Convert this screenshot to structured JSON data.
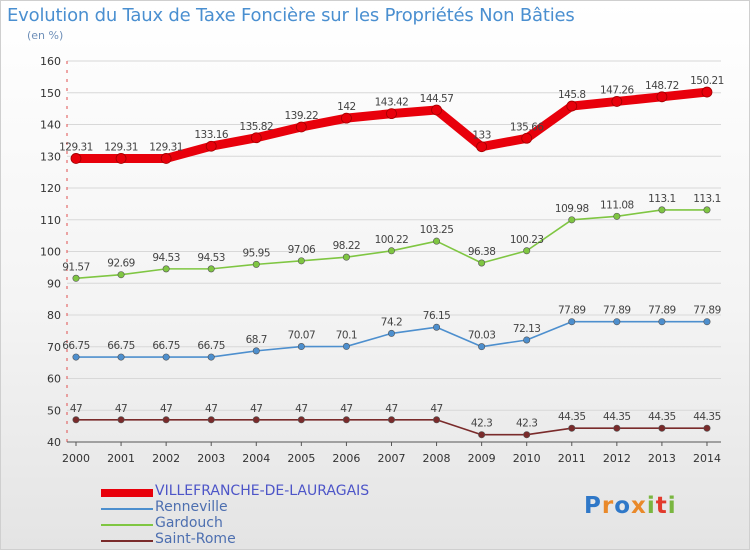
{
  "chart_data": {
    "type": "line",
    "title": "Evolution du Taux de Taxe Foncière sur les Propriétés Non Bâties",
    "unit_label": "(en %)",
    "x": [
      "2000",
      "2001",
      "2002",
      "2003",
      "2004",
      "2005",
      "2006",
      "2007",
      "2008",
      "2009",
      "2010",
      "2011",
      "2012",
      "2013",
      "2014"
    ],
    "y_ticks": [
      "40",
      "50",
      "60",
      "70",
      "80",
      "90",
      "100",
      "110",
      "120",
      "130",
      "140",
      "150",
      "160"
    ],
    "ylim": [
      40,
      160
    ],
    "grid": true,
    "legend_position": "bottom-left",
    "series": [
      {
        "name": "VILLEFRANCHE-DE-LAURAGAIS",
        "color": "#e8000b",
        "values": [
          129.31,
          129.31,
          129.31,
          133.16,
          135.82,
          139.22,
          142,
          143.42,
          144.57,
          133,
          135.66,
          145.8,
          147.26,
          148.72,
          150.21
        ],
        "labels": [
          "129.31",
          "129.31",
          "129.31",
          "133.16",
          "135.82",
          "139.22",
          "142",
          "143.42",
          "144.57",
          "133",
          "135.66",
          "145.8",
          "147.26",
          "148.72",
          "150.21"
        ]
      },
      {
        "name": "Renneville",
        "color": "#4d8fce",
        "values": [
          66.75,
          66.75,
          66.75,
          66.75,
          68.7,
          70.07,
          70.1,
          74.2,
          76.15,
          70.03,
          72.13,
          77.89,
          77.89,
          77.89,
          77.89
        ],
        "labels": [
          "66.75",
          "66.75",
          "66.75",
          "66.75",
          "68.7",
          "70.07",
          "70.1",
          "74.2",
          "76.15",
          "70.03",
          "72.13",
          "77.89",
          "77.89",
          "77.89",
          "77.89"
        ]
      },
      {
        "name": "Gardouch",
        "color": "#7fc642",
        "values": [
          91.57,
          92.69,
          94.53,
          94.53,
          95.95,
          97.06,
          98.22,
          100.22,
          103.25,
          96.38,
          100.23,
          109.98,
          111.08,
          113.1,
          113.1
        ],
        "labels": [
          "91.57",
          "92.69",
          "94.53",
          "94.53",
          "95.95",
          "97.06",
          "98.22",
          "100.22",
          "103.25",
          "96.38",
          "100.23",
          "109.98",
          "111.08",
          "113.1",
          "113.1"
        ]
      },
      {
        "name": "Saint-Rome",
        "color": "#7a2b2b",
        "values": [
          47,
          47,
          47,
          47,
          47,
          47,
          47,
          47,
          47,
          42.3,
          42.3,
          44.35,
          44.35,
          44.35,
          44.35
        ],
        "labels": [
          "47",
          "47",
          "47",
          "47",
          "47",
          "47",
          "47",
          "47",
          "47",
          "42.3",
          "42.3",
          "44.35",
          "44.35",
          "44.35",
          "44.35"
        ]
      }
    ]
  },
  "branding": {
    "logo_letters": [
      "P",
      "r",
      "o",
      "x",
      "i",
      "t",
      "i"
    ],
    "logo_colors": [
      "#2f78c8",
      "#e9892a",
      "#2f78c8",
      "#e9892a",
      "#7ab640",
      "#e23a2c",
      "#7ab640"
    ]
  }
}
